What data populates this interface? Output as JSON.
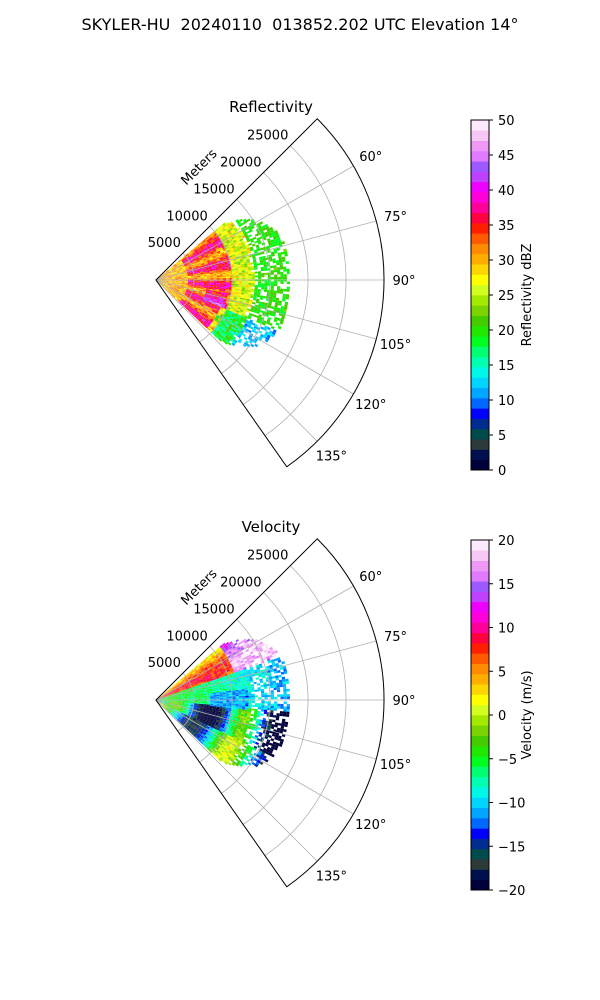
{
  "page": {
    "suptitle": "SKYLER-HU  20240110  013852.202 UTC Elevation 14°"
  },
  "chart_data": [
    {
      "type": "heatmap",
      "projection": "polar sector",
      "title": "Reflectivity",
      "radial_label": "Meters",
      "radial_ticks": [
        "5000",
        "10000",
        "15000",
        "20000",
        "25000"
      ],
      "radial_max": 30000,
      "angle_range_deg": [
        45,
        145
      ],
      "angle_ticks": [
        "60°",
        "75°",
        "90°",
        "105°",
        "120°",
        "135°"
      ],
      "grid": true,
      "colorbar": {
        "label": "Reflectivity dBZ",
        "min": 0,
        "max": 50,
        "ticks": [
          "0",
          "5",
          "10",
          "15",
          "20",
          "25",
          "30",
          "35",
          "40",
          "45",
          "50"
        ],
        "colors": [
          "#00003a",
          "#00104f",
          "#2d3a3a",
          "#004b4b",
          "#002c90",
          "#0000ff",
          "#0067ff",
          "#00a6ff",
          "#00d4ff",
          "#00f8e8",
          "#00ffb0",
          "#00ff72",
          "#00ff20",
          "#20e800",
          "#44cc00",
          "#7ad400",
          "#a4ea00",
          "#d2ff20",
          "#ffff00",
          "#ffd700",
          "#ffae00",
          "#ff8c00",
          "#ff5a00",
          "#ff1f00",
          "#ff0040",
          "#ff0099",
          "#ff00d8",
          "#ee00ff",
          "#c040ff",
          "#9b59ff",
          "#e07aff",
          "#ee99f5",
          "#f7c8f5",
          "#fde8fd"
        ]
      },
      "field_extent": {
        "max_range_m": 17500,
        "angle_range_deg": [
          50,
          133
        ]
      }
    },
    {
      "type": "heatmap",
      "projection": "polar sector",
      "title": "Velocity",
      "radial_label": "Meters",
      "radial_ticks": [
        "5000",
        "10000",
        "15000",
        "20000",
        "25000"
      ],
      "radial_max": 30000,
      "angle_range_deg": [
        45,
        145
      ],
      "angle_ticks": [
        "60°",
        "75°",
        "90°",
        "105°",
        "120°",
        "135°"
      ],
      "grid": true,
      "colorbar": {
        "label": "Velocity (m/s)",
        "min": -20,
        "max": 20,
        "ticks": [
          "−20",
          "−15",
          "−10",
          "−5",
          "0",
          "5",
          "10",
          "15",
          "20"
        ],
        "colors": [
          "#00003a",
          "#00104f",
          "#2d3a3a",
          "#004b4b",
          "#002c90",
          "#0000ff",
          "#0067ff",
          "#00a6ff",
          "#00d4ff",
          "#00f8e8",
          "#00ffb0",
          "#00ff72",
          "#00ff20",
          "#20e800",
          "#44cc00",
          "#7ad400",
          "#a4ea00",
          "#d2ff20",
          "#ffff00",
          "#ffd700",
          "#ffae00",
          "#ff8c00",
          "#ff5a00",
          "#ff1f00",
          "#ff0040",
          "#ff0099",
          "#ff00d8",
          "#ee00ff",
          "#c040ff",
          "#9b59ff",
          "#e07aff",
          "#ee99f5",
          "#f7c8f5",
          "#fde8fd"
        ]
      },
      "field_extent": {
        "max_range_m": 17500,
        "angle_range_deg": [
          50,
          133
        ]
      }
    }
  ]
}
